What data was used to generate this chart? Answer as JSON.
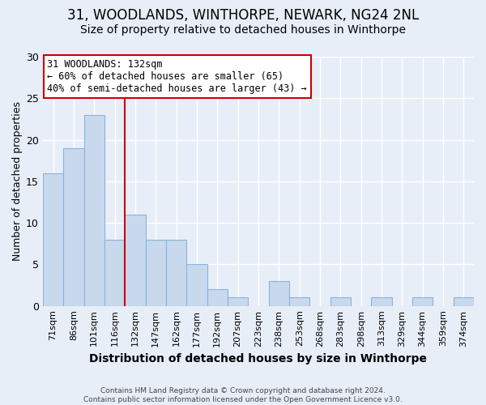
{
  "title": "31, WOODLANDS, WINTHORPE, NEWARK, NG24 2NL",
  "subtitle": "Size of property relative to detached houses in Winthorpe",
  "xlabel": "Distribution of detached houses by size in Winthorpe",
  "ylabel": "Number of detached properties",
  "bins": [
    "71sqm",
    "86sqm",
    "101sqm",
    "116sqm",
    "132sqm",
    "147sqm",
    "162sqm",
    "177sqm",
    "192sqm",
    "207sqm",
    "223sqm",
    "238sqm",
    "253sqm",
    "268sqm",
    "283sqm",
    "298sqm",
    "313sqm",
    "329sqm",
    "344sqm",
    "359sqm",
    "374sqm"
  ],
  "values": [
    16,
    19,
    23,
    8,
    11,
    8,
    8,
    5,
    2,
    1,
    0,
    3,
    1,
    0,
    1,
    0,
    1,
    0,
    1,
    0,
    1
  ],
  "bar_color": "#c8d9ee",
  "bar_edge_color": "#8ab4d8",
  "vline_x": 4.0,
  "vline_color": "#cc0000",
  "annotation_text": "31 WOODLANDS: 132sqm\n← 60% of detached houses are smaller (65)\n40% of semi-detached houses are larger (43) →",
  "annotation_box_color": "#ffffff",
  "annotation_box_edge": "#cc0000",
  "ylim": [
    0,
    30
  ],
  "yticks": [
    0,
    5,
    10,
    15,
    20,
    25,
    30
  ],
  "title_fontsize": 12,
  "subtitle_fontsize": 10,
  "xlabel_fontsize": 10,
  "ylabel_fontsize": 9,
  "footer_text": "Contains HM Land Registry data © Crown copyright and database right 2024.\nContains public sector information licensed under the Open Government Licence v3.0.",
  "background_color": "#e8eef8",
  "plot_background_color": "#e8eef8",
  "grid_color": "#ffffff"
}
